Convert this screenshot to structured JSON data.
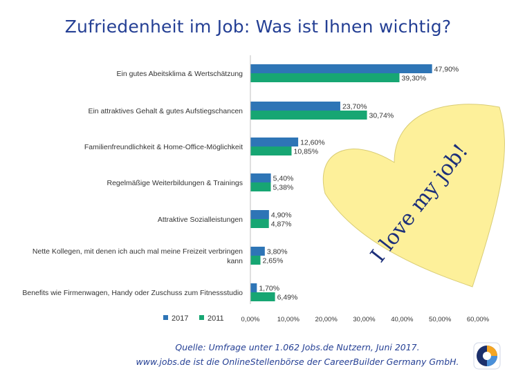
{
  "title": "Zufriedenheit im Job: Was ist Ihnen wichtig?",
  "source": {
    "line1": "Quelle: Umfrage unter 1.062 Jobs.de Nutzern, Juni 2017.",
    "line2": "www.jobs.de ist die OnlineStellenbörse der CareerBuilder Germany GmbH."
  },
  "sticker": {
    "text": "I love my job!"
  },
  "colors": {
    "series_2017": "#2e75b6",
    "series_2011": "#17a673",
    "title": "#243f94",
    "sticker": "#fdf09a"
  },
  "logo": {
    "icon": "jobs-de-logo-icon"
  },
  "chart_data": {
    "type": "bar",
    "orientation": "horizontal",
    "title": "Zufriedenheit im Job: Was ist Ihnen wichtig?",
    "categories": [
      [
        "Ein gutes Abeitsklima & Wertschätzung"
      ],
      [
        "Ein attraktives Gehalt & gutes Aufstiegschancen"
      ],
      [
        "Familienfreundlichkeit & Home-Office-Möglichkeit"
      ],
      [
        "Regelmäßige Weiterbildungen & Trainings"
      ],
      [
        "Attraktive Sozialleistungen"
      ],
      [
        "Nette Kollegen, mit denen ich auch mal meine Freizeit verbringen",
        "kann"
      ],
      [
        "Benefits wie Firmenwagen, Handy oder Zuschuss zum Fitnessstudio"
      ]
    ],
    "series": [
      {
        "name": "2017",
        "values": [
          47.9,
          23.7,
          12.6,
          5.4,
          4.9,
          3.8,
          1.7
        ],
        "labels": [
          "47,90%",
          "23,70%",
          "12,60%",
          "5,40%",
          "4,90%",
          "3,80%",
          "1,70%"
        ]
      },
      {
        "name": "2011",
        "values": [
          39.3,
          30.74,
          10.85,
          5.38,
          4.87,
          2.65,
          6.49
        ],
        "labels": [
          "39,30%",
          "30,74%",
          "10,85%",
          "5,38%",
          "4,87%",
          "2,65%",
          "6,49%"
        ]
      }
    ],
    "xlim": [
      0,
      60
    ],
    "xticks": [
      0,
      10,
      20,
      30,
      40,
      50,
      60
    ],
    "xtick_labels": [
      "0,00%",
      "10,00%",
      "20,00%",
      "30,00%",
      "40,00%",
      "50,00%",
      "60,00%"
    ],
    "grid": false,
    "legend": "bottom-left"
  }
}
